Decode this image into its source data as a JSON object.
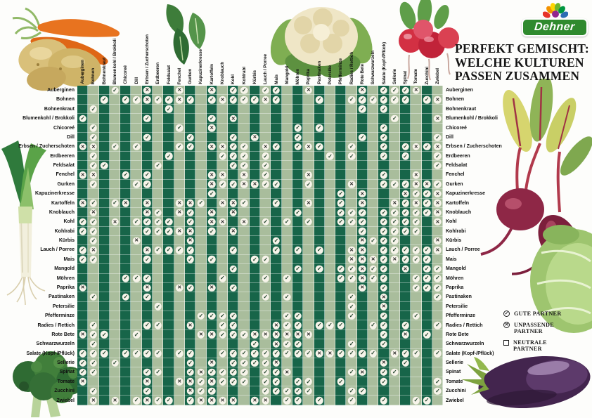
{
  "title": {
    "line1": "PERFEKT GEMISCHT:",
    "line2": "WELCHE KULTUREN",
    "line3": "PASSEN ZUSAMMEN"
  },
  "logo": {
    "text": "Dehner"
  },
  "legend": {
    "items": [
      {
        "symbol": "good",
        "label": "GUTE PARTNER"
      },
      {
        "symbol": "bad",
        "label": "UNPASSENDE PARTNER"
      },
      {
        "symbol": "neutral",
        "label": "NEUTRALE PARTNER"
      }
    ]
  },
  "colors": {
    "cell_dark": "#176549",
    "cell_light": "#a9bd9c",
    "circle_bg": "#f7f4ea",
    "check_color": "#1e4029",
    "cross_color": "#1c1c1c",
    "logo_green": "#2f8a2e"
  },
  "chart_data": {
    "type": "matrix",
    "title": "PERFEKT GEMISCHT: WELCHE KULTUREN PASSEN ZUSAMMEN",
    "legend_map": {
      "G": "gute Partner",
      "B": "unpassende Partner",
      "-": "neutrale Partner"
    },
    "crops": [
      "Auberginen",
      "Bohnen",
      "Bohnenkraut",
      "Blumenkohl / Brokkoli",
      "Chicoreé",
      "Dill",
      "Erbsen / Zucherschoten",
      "Erdbeeren",
      "Feldsalat",
      "Fenchel",
      "Gurken",
      "Kapuzinerkresse",
      "Kartoffeln",
      "Knoblauch",
      "Kohl",
      "Kohlrabi",
      "Kürbis",
      "Lauch / Porree",
      "Mais",
      "Mangold",
      "Möhren",
      "Paprika",
      "Pastinaken",
      "Petersilie",
      "Pfefferminze",
      "Radies / Rettich",
      "Rote Bete",
      "Schwarzwurzeln",
      "Salate (Kopf-/Pflück)",
      "Sellerie",
      "Spinat",
      "Tomate",
      "Zucchini",
      "Zwiebel"
    ],
    "matrix": [
      "---G--B--B--B-GG-GG--B----B-GGGB--",
      "--G-GGBGGBG-GBGGGBG---G--GGGGGG-GB",
      "-G------G-----------------G-G-----",
      "G-----G-----G-B--------------G---B",
      "-G-------G--B-------G-G-----G-----",
      "-G----G---G---G-B---G-----G-G----G",
      "BB-G-G---GG-BBGG-BG-GBG--G--G-GBGB",
      "-G------G----GGG-G-----G-G--G-G--G",
      "-GG----G------GG-G---------------G",
      "BB--G-G-----BB-B-G---B------G--B--",
      "-G---GG-----BGGBBGG--G---B--GGGBBG",
      "------------G-----------G-B---BGGB",
      "BG-GB-B--BBG-BBG--G--B--G-B--BGBGB",
      "-B----BG-BG-B-B-----G---GGG-GGGGGB",
      "GG-B-GGGG-G-BB-B-G-G-G--GGG-GGGG-B",
      "GG----GGGBB-G-B-----------G-GGGG--",
      "-G---B----B-------G-------BGGG---B",
      "GB----BGGGG---G---G-G-G--BB-GGGGGB",
      "GG----G---G-G---GG-------BBBGBGGG-",
      "--------------G-----G-G-GGBGG-B-GG",
      "----GGG------G---G-G----GGBGG--GGG",
      "B-----B--BG-B-G-----------B-G--GGG",
      "-G--G-G----------G-G-----G--B----G",
      "-------G-----------------G--B-----",
      "-----------GGGG----GG----G--G--G--",
      "-G----GG--B--GG---BGG-GGG--GG-G--G",
      "BGG--G-----BBGGGBBBBBB------G-B-G-",
      "-G--------------G-BGG----G--G-----",
      "GGG-GGGG-GG--GGGGGGGGGBBGGGG-BGG-G",
      "GG-G------G-B-GGGGB---------B-G---",
      "GG----GG--GBGGGG-GGB-----GB-GG----",
      "B-----B--BBGBGGG-GG-GG--G---G----G",
      "-G----G---BGG----GGGGG---GG------G",
      "-B-B-GBGG-GBBBB-BB-GG-G--G--G--GG-"
    ]
  }
}
